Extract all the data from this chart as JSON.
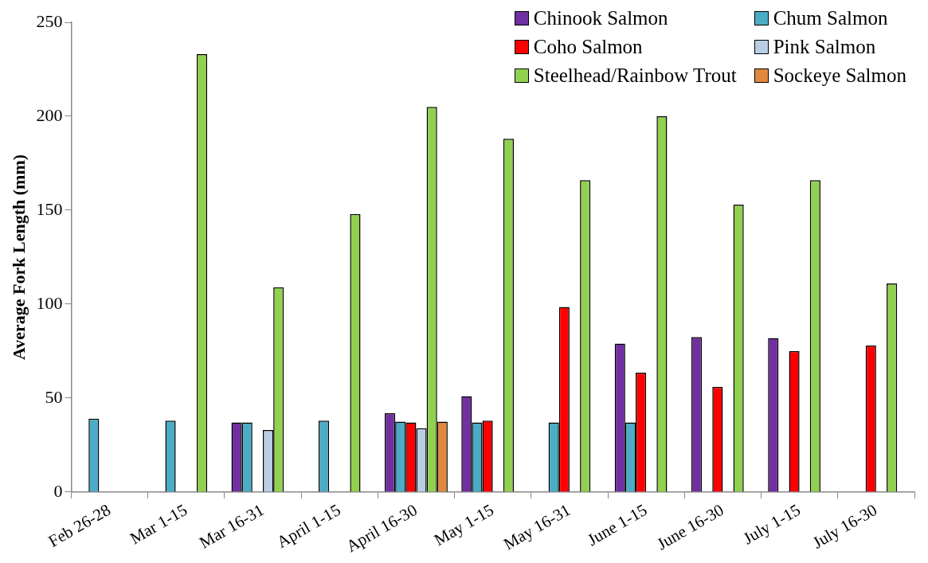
{
  "chart_data": {
    "type": "bar",
    "ylabel": "Average Fork Length (mm)",
    "categories": [
      "Feb 26-28",
      "Mar 1-15",
      "Mar 16-31",
      "April 1-15",
      "April 16-30",
      "May 1-15",
      "May 16-31",
      "June 1-15",
      "June 16-30",
      "July 1-15",
      "July 16-30"
    ],
    "series": [
      {
        "name": "Chinook Salmon",
        "color": "#7030a0",
        "values": [
          null,
          null,
          37,
          null,
          42,
          51,
          null,
          79,
          82.5,
          82,
          null
        ]
      },
      {
        "name": "Chum Salmon",
        "color": "#4bacc6",
        "values": [
          39,
          38,
          37,
          38,
          37.5,
          37,
          37,
          37,
          null,
          null,
          null
        ]
      },
      {
        "name": "Coho Salmon",
        "color": "#ff0000",
        "values": [
          null,
          null,
          null,
          null,
          37,
          38,
          98.5,
          63.5,
          56,
          75,
          78
        ]
      },
      {
        "name": "Pink Salmon",
        "color": "#b9cde5",
        "values": [
          null,
          null,
          33,
          null,
          34,
          null,
          null,
          null,
          null,
          null,
          null
        ]
      },
      {
        "name": "Steelhead/Rainbow Trout",
        "color": "#92d050",
        "values": [
          null,
          233,
          109,
          148,
          205,
          188,
          166,
          200,
          153,
          166,
          111
        ]
      },
      {
        "name": "Sockeye Salmon",
        "color": "#e0883e",
        "values": [
          null,
          null,
          null,
          null,
          37.5,
          null,
          null,
          null,
          null,
          null,
          null
        ]
      }
    ],
    "ylim": [
      0,
      250
    ],
    "yticks": [
      0,
      50,
      100,
      150,
      200,
      250
    ],
    "grid": false,
    "legend": "top right"
  }
}
